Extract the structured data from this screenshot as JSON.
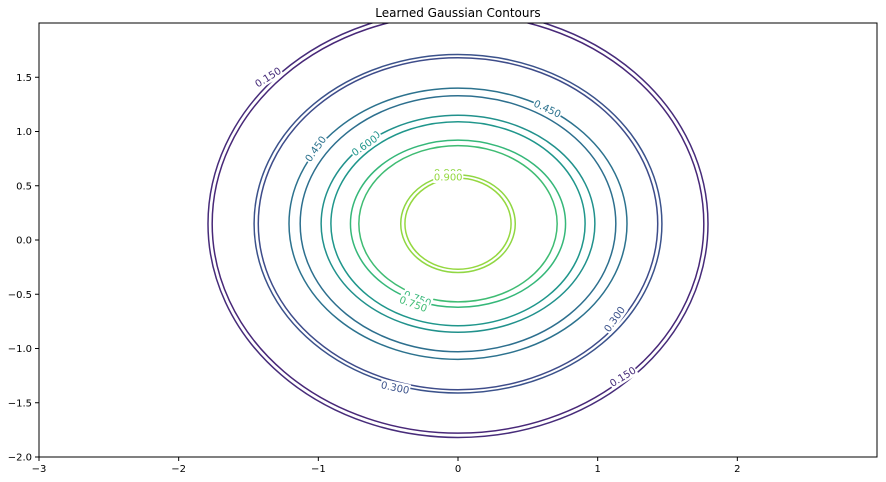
{
  "chart_data": {
    "type": "contour",
    "title": "Learned Gaussian Contours",
    "xlabel": "",
    "ylabel": "",
    "xlim": [
      -3,
      3
    ],
    "ylim": [
      -2,
      2
    ],
    "x_ticks": [
      -3,
      -2,
      -1,
      0,
      1,
      2
    ],
    "x_tick_labels": [
      "−3",
      "−2",
      "−1",
      "0",
      "1",
      "2"
    ],
    "y_ticks": [
      -2.0,
      -1.5,
      -1.0,
      -0.5,
      0.0,
      0.5,
      1.0,
      1.5
    ],
    "y_tick_labels": [
      "−2.0",
      "−1.5",
      "−1.0",
      "−0.5",
      "0.0",
      "0.5",
      "1.0",
      "1.5"
    ],
    "grid": false,
    "center": [
      0.0,
      0.15
    ],
    "levels": [
      {
        "value": 0.15,
        "rx": 1.76,
        "ry": 1.93,
        "color": "#482878"
      },
      {
        "value": 0.15,
        "rx": 1.79,
        "ry": 1.97,
        "color": "#472c7a"
      },
      {
        "value": 0.3,
        "rx": 1.46,
        "ry": 1.56,
        "color": "#3b528b"
      },
      {
        "value": 0.3,
        "rx": 1.43,
        "ry": 1.53,
        "color": "#3e4c8a"
      },
      {
        "value": 0.45,
        "rx": 1.21,
        "ry": 1.25,
        "color": "#2c728e"
      },
      {
        "value": 0.45,
        "rx": 1.13,
        "ry": 1.18,
        "color": "#2d6f8e"
      },
      {
        "value": 0.6,
        "rx": 0.98,
        "ry": 1.0,
        "color": "#21918c"
      },
      {
        "value": 0.6,
        "rx": 0.91,
        "ry": 0.94,
        "color": "#1f968b"
      },
      {
        "value": 0.75,
        "rx": 0.77,
        "ry": 0.77,
        "color": "#35b779"
      },
      {
        "value": 0.75,
        "rx": 0.71,
        "ry": 0.72,
        "color": "#3fbc73"
      },
      {
        "value": 0.9,
        "rx": 0.41,
        "ry": 0.45,
        "color": "#90d743"
      },
      {
        "value": 0.9,
        "rx": 0.38,
        "ry": 0.42,
        "color": "#95d840"
      }
    ],
    "contour_labels": [
      {
        "text": "0.150",
        "x": -1.36,
        "y": 1.5,
        "angle": -32,
        "color": "#472c7a"
      },
      {
        "text": "0.150",
        "x": 1.18,
        "y": -1.26,
        "angle": -32,
        "color": "#472c7a"
      },
      {
        "text": "0.300",
        "x": -0.45,
        "y": -1.36,
        "angle": 12,
        "color": "#3b528b"
      },
      {
        "text": "0.300",
        "x": 1.12,
        "y": -0.73,
        "angle": -55,
        "color": "#3b528b"
      },
      {
        "text": "0.450",
        "x": -1.02,
        "y": 0.84,
        "angle": -55,
        "color": "#2c728e"
      },
      {
        "text": "0.450",
        "x": 0.64,
        "y": 1.21,
        "angle": 25,
        "color": "#2c728e"
      },
      {
        "text": "0.600",
        "x": -0.65,
        "y": 0.91,
        "angle": -35,
        "color": "#21918c"
      },
      {
        "text": "0.600",
        "x": -0.67,
        "y": 0.87,
        "angle": -35,
        "color": "#1f968b"
      },
      {
        "text": "0.750",
        "x": -0.29,
        "y": -0.54,
        "angle": 20,
        "color": "#35b779"
      },
      {
        "text": "0.750",
        "x": -0.32,
        "y": -0.59,
        "angle": 20,
        "color": "#3fbc73"
      },
      {
        "text": "0.900",
        "x": -0.07,
        "y": 0.62,
        "angle": 0,
        "color": "#90d743"
      },
      {
        "text": "0.900",
        "x": -0.07,
        "y": 0.58,
        "angle": 0,
        "color": "#95d840"
      }
    ]
  }
}
